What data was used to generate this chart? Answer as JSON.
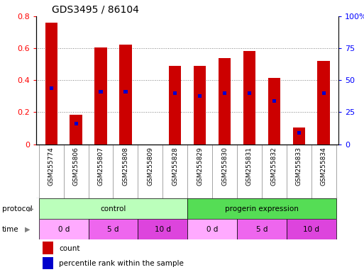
{
  "title": "GDS3495 / 86104",
  "samples": [
    "GSM255774",
    "GSM255806",
    "GSM255807",
    "GSM255808",
    "GSM255809",
    "GSM255828",
    "GSM255829",
    "GSM255830",
    "GSM255831",
    "GSM255832",
    "GSM255833",
    "GSM255834"
  ],
  "count_values": [
    0.76,
    0.185,
    0.605,
    0.625,
    0.0,
    0.49,
    0.49,
    0.54,
    0.585,
    0.415,
    0.105,
    0.52
  ],
  "percentile_values": [
    0.35,
    0.13,
    0.33,
    0.33,
    0.0,
    0.32,
    0.3,
    0.32,
    0.32,
    0.27,
    0.07,
    0.32
  ],
  "bar_color": "#cc0000",
  "percentile_color": "#0000cc",
  "ylim": [
    0,
    0.8
  ],
  "yticks": [
    0,
    0.2,
    0.4,
    0.6,
    0.8
  ],
  "y2labels": [
    "0",
    "25",
    "50",
    "75",
    "100%"
  ],
  "protocol_control_color": "#bbffbb",
  "protocol_progerin_color": "#55dd55",
  "time_colors": [
    "#ffaaff",
    "#ee66ee",
    "#dd44dd",
    "#ffaaff",
    "#ee66ee",
    "#dd44dd"
  ],
  "protocol_groups": [
    {
      "label": "control",
      "start": 0,
      "end": 6
    },
    {
      "label": "progerin expression",
      "start": 6,
      "end": 12
    }
  ],
  "time_groups": [
    {
      "label": "0 d",
      "start": 0,
      "end": 2
    },
    {
      "label": "5 d",
      "start": 2,
      "end": 4
    },
    {
      "label": "10 d",
      "start": 4,
      "end": 6
    },
    {
      "label": "0 d",
      "start": 6,
      "end": 8
    },
    {
      "label": "5 d",
      "start": 8,
      "end": 10
    },
    {
      "label": "10 d",
      "start": 10,
      "end": 12
    }
  ],
  "legend_items": [
    {
      "label": "count",
      "color": "#cc0000"
    },
    {
      "label": "percentile rank within the sample",
      "color": "#0000cc"
    }
  ]
}
